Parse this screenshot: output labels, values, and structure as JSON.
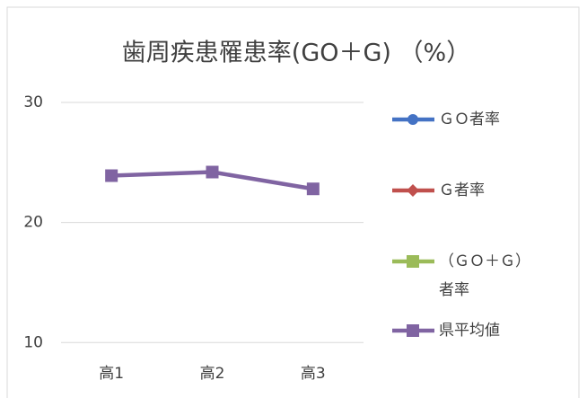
{
  "chart_data": {
    "type": "line",
    "title": "歯周疾患罹患率(GO＋G) （%）",
    "categories": [
      "高1",
      "高2",
      "高3"
    ],
    "series": [
      {
        "name": "ＧＯ者率",
        "color": "#4472c4",
        "marker": "circle",
        "values": [
          null,
          null,
          null
        ]
      },
      {
        "name": "Ｇ者率",
        "color": "#c0504d",
        "marker": "diamond",
        "values": [
          null,
          null,
          null
        ]
      },
      {
        "name": "（ＧＯ＋Ｇ）者率",
        "color": "#9bbb59",
        "marker": "square",
        "values": [
          null,
          null,
          null
        ]
      },
      {
        "name": "県平均値",
        "color": "#8064a2",
        "marker": "square",
        "values": [
          23.9,
          24.2,
          22.8
        ]
      }
    ],
    "ylim": [
      8.6,
      30
    ],
    "yticks": [
      10,
      20,
      30
    ],
    "grid": true,
    "legend": "right"
  }
}
